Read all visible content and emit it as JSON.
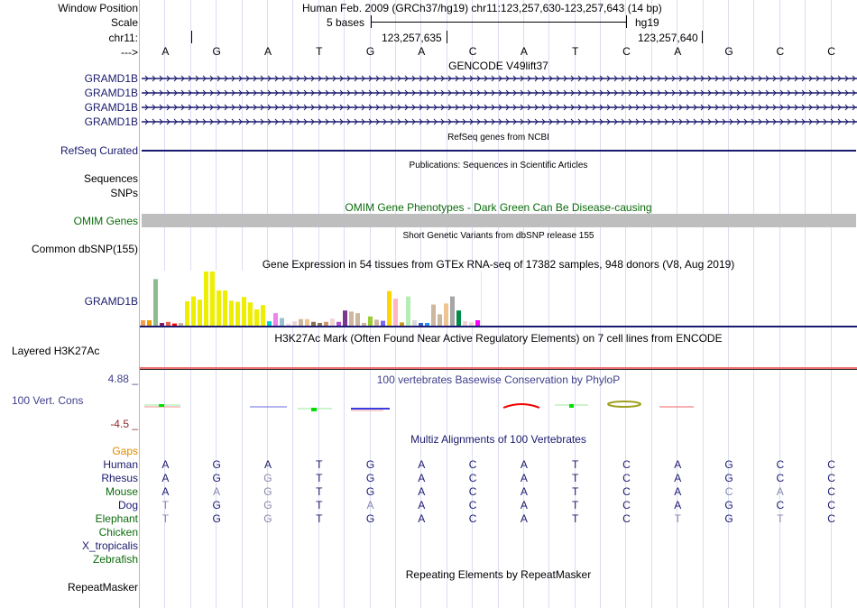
{
  "header": {
    "window_position_label": "Window Position",
    "window_position_text": "Human Feb. 2009 (GRCh37/hg19)   chr11:123,257,630-123,257,643 (14 bp)",
    "scale_label": "Scale",
    "scale_text": "5 bases",
    "scale_assembly": "hg19",
    "chrom_label": "chr11:",
    "coord_1": "123,257,635",
    "coord_2": "123,257,640",
    "strand_label": "--->",
    "bases": [
      "A",
      "G",
      "A",
      "T",
      "G",
      "A",
      "C",
      "A",
      "T",
      "C",
      "A",
      "G",
      "C",
      "C"
    ]
  },
  "tracks": {
    "gencode": {
      "title": "GENCODE V49lift37",
      "labels": [
        "GRAMD1B",
        "GRAMD1B",
        "GRAMD1B",
        "GRAMD1B"
      ],
      "color": "#1a1a6e"
    },
    "refseq": {
      "label": "RefSeq Curated",
      "title": "RefSeq genes from NCBI"
    },
    "publications": {
      "title": "Publications: Sequences in Scientific Articles",
      "labels": [
        "Sequences",
        "SNPs"
      ]
    },
    "omim": {
      "label": "OMIM Genes",
      "title": "OMIM Gene Phenotypes - Dark Green Can Be Disease-causing",
      "bar_color": "#bebebe"
    },
    "dbsnp": {
      "label": "Common dbSNP(155)",
      "title": "Short Genetic Variants from dbSNP release 155"
    },
    "gtex": {
      "label": "GRAMD1B",
      "title": "Gene Expression in 54 tissues from GTEx RNA-seq of 17382 samples, 948 donors (V8, Aug 2019)"
    },
    "h3k27ac": {
      "label": "Layered H3K27Ac",
      "title": "H3K27Ac Mark (Often Found Near Active Regulatory Elements) on 7 cell lines from ENCODE"
    },
    "phylop": {
      "label": "100 Vert. Cons",
      "title": "100 vertebrates Basewise Conservation by PhyloP",
      "max_label": "4.88 _",
      "min_label": "-4.5 _"
    },
    "multiz": {
      "title": "Multiz Alignments of 100 Vertebrates",
      "gaps_label": "Gaps",
      "species": [
        {
          "name": "Human",
          "color": "navy",
          "bases": [
            "A",
            "G",
            "A",
            "T",
            "G",
            "A",
            "C",
            "A",
            "T",
            "C",
            "A",
            "G",
            "C",
            "C"
          ],
          "dim": []
        },
        {
          "name": "Rhesus",
          "color": "navy",
          "bases": [
            "A",
            "G",
            "G",
            "T",
            "G",
            "A",
            "C",
            "A",
            "T",
            "C",
            "A",
            "G",
            "C",
            "C"
          ],
          "dim": [
            2
          ]
        },
        {
          "name": "Mouse",
          "color": "green",
          "bases": [
            "A",
            "A",
            "G",
            "T",
            "G",
            "A",
            "C",
            "A",
            "T",
            "C",
            "A",
            "C",
            "A",
            "C"
          ],
          "dim": [
            1,
            2,
            11,
            12
          ]
        },
        {
          "name": "Dog",
          "color": "navy",
          "bases": [
            "T",
            "G",
            "G",
            "T",
            "A",
            "A",
            "C",
            "A",
            "T",
            "C",
            "A",
            "G",
            "C",
            "C"
          ],
          "dim": [
            0,
            2,
            4
          ]
        },
        {
          "name": "Elephant",
          "color": "green",
          "bases": [
            "T",
            "G",
            "G",
            "T",
            "G",
            "A",
            "C",
            "A",
            "T",
            "C",
            "T",
            "G",
            "T",
            "C"
          ],
          "dim": [
            0,
            2,
            10,
            12
          ]
        },
        {
          "name": "Chicken",
          "color": "green",
          "bases": [],
          "dim": []
        },
        {
          "name": "X_tropicalis",
          "color": "navy",
          "bases": [],
          "dim": []
        },
        {
          "name": "Zebrafish",
          "color": "green",
          "bases": [],
          "dim": []
        }
      ]
    },
    "repeatmasker": {
      "label": "RepeatMasker",
      "title": "Repeating Elements by RepeatMasker"
    }
  },
  "chart_data": {
    "type": "bar",
    "title": "Gene Expression in 54 tissues from GTEx RNA-seq of 17382 samples, 948 donors (V8, Aug 2019)",
    "xlabel": "",
    "ylabel": "",
    "ylim": [
      0,
      100
    ],
    "values": [
      10,
      10,
      86,
      5,
      7,
      4,
      5,
      45,
      54,
      48,
      100,
      100,
      65,
      65,
      46,
      44,
      53,
      43,
      30,
      38,
      8,
      23,
      14,
      4,
      8,
      12,
      12,
      7,
      5,
      7,
      13,
      7,
      28,
      26,
      23,
      5,
      17,
      11,
      9,
      64,
      50,
      6,
      54,
      10,
      5,
      5,
      39,
      21,
      41,
      54,
      28,
      8,
      6,
      10
    ],
    "colors": [
      "#f0a050",
      "#f0a000",
      "#8fbc8f",
      "#8b1a6b",
      "#e8604c",
      "#ff0000",
      "#c8b49b",
      "#eeee00",
      "#eeee00",
      "#eeee00",
      "#eeee00",
      "#eeee00",
      "#eeee00",
      "#eeee00",
      "#eeee00",
      "#eeee00",
      "#eeee00",
      "#eeee00",
      "#eeee00",
      "#eeee00",
      "#00cdcd",
      "#ee82ee",
      "#9ac0cd",
      "#eedfdf",
      "#eed5d2",
      "#cdb79e",
      "#eec591",
      "#8b7355",
      "#8b7355",
      "#cd9b6e",
      "#eed5d2",
      "#b452cd",
      "#7a378b",
      "#cdb79e",
      "#cdb79e",
      "#cdb79e",
      "#9acd32",
      "#cdb79e",
      "#7b68ee",
      "#ffd700",
      "#ffb6c1",
      "#cd9b1d",
      "#b4eeb4",
      "#d9d9d9",
      "#3a5fcd",
      "#1e90ff",
      "#cdb79e",
      "#cdb79e",
      "#eec591",
      "#a6a6a6",
      "#008b45",
      "#eed5d2",
      "#eed5d2",
      "#ff00ff"
    ]
  }
}
